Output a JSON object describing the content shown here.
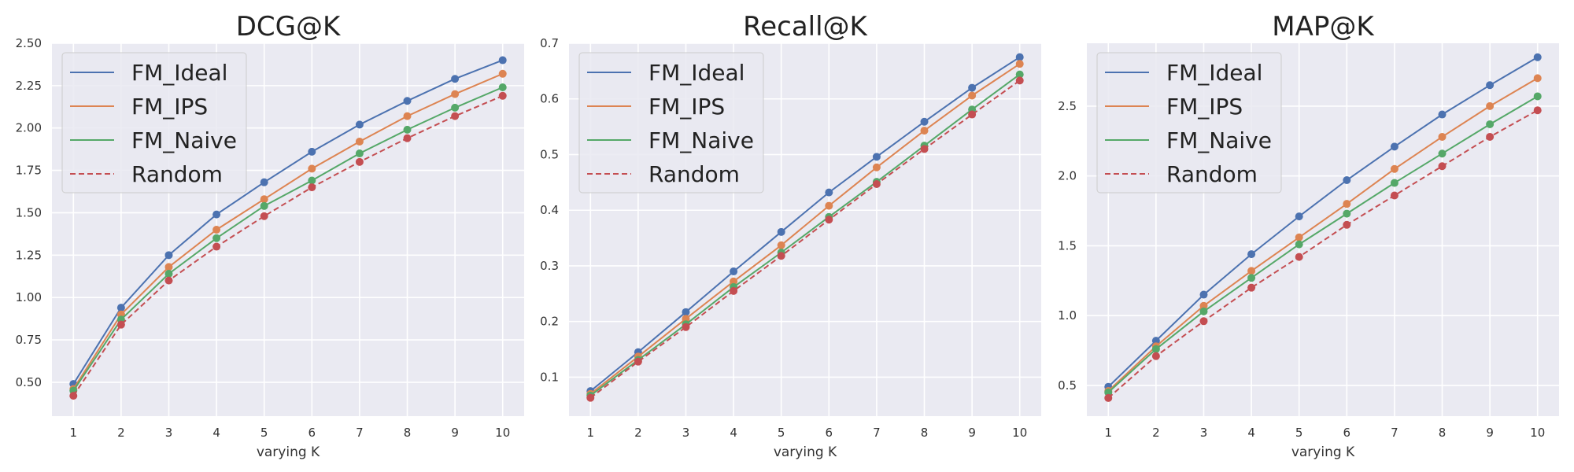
{
  "chart_data": [
    {
      "type": "line",
      "title": "DCG@K",
      "xlabel": "varying K",
      "ylabel": "",
      "x": [
        1,
        2,
        3,
        4,
        5,
        6,
        7,
        8,
        9,
        10
      ],
      "xlim": [
        0.55,
        10.45
      ],
      "ylim": [
        0.3,
        2.5
      ],
      "yticks": [
        0.5,
        0.75,
        1.0,
        1.25,
        1.5,
        1.75,
        2.0,
        2.25,
        2.5
      ],
      "ytick_labels": [
        "0.50",
        "0.75",
        "1.00",
        "1.25",
        "1.50",
        "1.75",
        "2.00",
        "2.25",
        "2.50"
      ],
      "grid": true,
      "legend": "upper-left",
      "series": [
        {
          "name": "FM_Ideal",
          "values": [
            0.49,
            0.94,
            1.25,
            1.49,
            1.68,
            1.86,
            2.02,
            2.16,
            2.29,
            2.4
          ]
        },
        {
          "name": "FM_IPS",
          "values": [
            0.46,
            0.9,
            1.18,
            1.4,
            1.58,
            1.76,
            1.92,
            2.07,
            2.2,
            2.32
          ]
        },
        {
          "name": "FM_Naive",
          "values": [
            0.45,
            0.87,
            1.14,
            1.35,
            1.54,
            1.69,
            1.85,
            1.99,
            2.12,
            2.24
          ]
        },
        {
          "name": "Random",
          "values": [
            0.42,
            0.84,
            1.1,
            1.3,
            1.48,
            1.65,
            1.8,
            1.94,
            2.07,
            2.19
          ]
        }
      ]
    },
    {
      "type": "line",
      "title": "Recall@K",
      "xlabel": "varying K",
      "ylabel": "",
      "x": [
        1,
        2,
        3,
        4,
        5,
        6,
        7,
        8,
        9,
        10
      ],
      "xlim": [
        0.55,
        10.45
      ],
      "ylim": [
        0.03,
        0.7
      ],
      "yticks": [
        0.1,
        0.2,
        0.3,
        0.4,
        0.5,
        0.6,
        0.7
      ],
      "ytick_labels": [
        "0.1",
        "0.2",
        "0.3",
        "0.4",
        "0.5",
        "0.6",
        "0.7"
      ],
      "grid": true,
      "legend": "upper-left",
      "series": [
        {
          "name": "FM_Ideal",
          "values": [
            0.075,
            0.145,
            0.217,
            0.29,
            0.361,
            0.432,
            0.496,
            0.559,
            0.62,
            0.675
          ]
        },
        {
          "name": "FM_IPS",
          "values": [
            0.07,
            0.137,
            0.205,
            0.272,
            0.337,
            0.408,
            0.477,
            0.543,
            0.606,
            0.663
          ]
        },
        {
          "name": "FM_Naive",
          "values": [
            0.067,
            0.131,
            0.195,
            0.262,
            0.324,
            0.388,
            0.451,
            0.516,
            0.581,
            0.644
          ]
        },
        {
          "name": "Random",
          "values": [
            0.063,
            0.128,
            0.19,
            0.255,
            0.318,
            0.383,
            0.447,
            0.51,
            0.572,
            0.633
          ]
        }
      ]
    },
    {
      "type": "line",
      "title": "MAP@K",
      "xlabel": "varying K",
      "ylabel": "",
      "x": [
        1,
        2,
        3,
        4,
        5,
        6,
        7,
        8,
        9,
        10
      ],
      "xlim": [
        0.55,
        10.45
      ],
      "ylim": [
        0.28,
        2.95
      ],
      "yticks": [
        0.5,
        1.0,
        1.5,
        2.0,
        2.5
      ],
      "ytick_labels": [
        "0.5",
        "1.0",
        "1.5",
        "2.0",
        "2.5"
      ],
      "grid": true,
      "legend": "upper-left",
      "series": [
        {
          "name": "FM_Ideal",
          "values": [
            0.49,
            0.82,
            1.15,
            1.44,
            1.71,
            1.97,
            2.21,
            2.44,
            2.65,
            2.85
          ]
        },
        {
          "name": "FM_IPS",
          "values": [
            0.46,
            0.78,
            1.07,
            1.32,
            1.56,
            1.8,
            2.05,
            2.28,
            2.5,
            2.7
          ]
        },
        {
          "name": "FM_Naive",
          "values": [
            0.45,
            0.76,
            1.03,
            1.27,
            1.51,
            1.73,
            1.95,
            2.16,
            2.37,
            2.57
          ]
        },
        {
          "name": "Random",
          "values": [
            0.41,
            0.71,
            0.96,
            1.2,
            1.42,
            1.65,
            1.86,
            2.07,
            2.28,
            2.47
          ]
        }
      ]
    }
  ],
  "style": {
    "plot_background": "#eaeaf2",
    "grid_color": "#ffffff",
    "legend_background": "#e9e9f1",
    "legend_border": "#cccccc",
    "series_colors": [
      "#4c72b0",
      "#dd8452",
      "#55a868",
      "#c44e52"
    ],
    "series_dashed": [
      false,
      false,
      false,
      true
    ]
  }
}
